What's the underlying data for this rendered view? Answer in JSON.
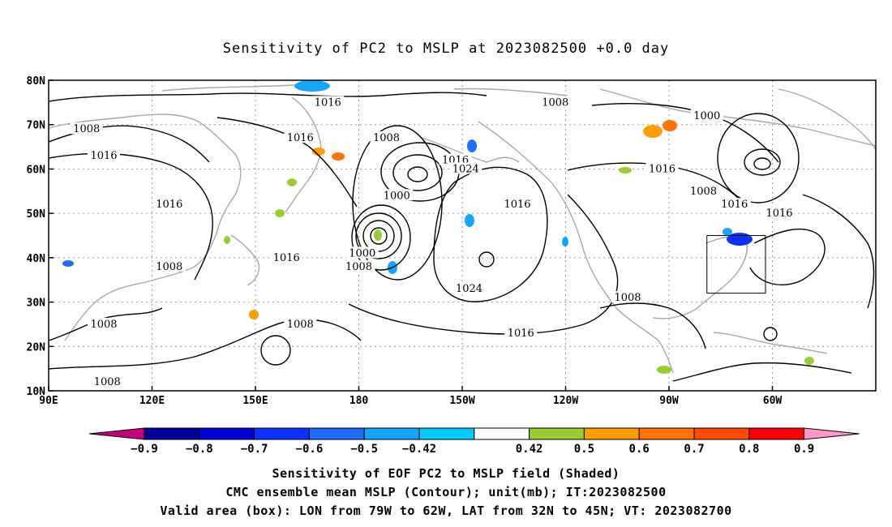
{
  "title": "Sensitivity of PC2 to MSLP at 2023082500 +0.0 day",
  "map": {
    "lon_ticks": [
      "90E",
      "120E",
      "150E",
      "180",
      "150W",
      "120W",
      "90W",
      "60W"
    ],
    "lat_ticks": [
      "80N",
      "70N",
      "60N",
      "50N",
      "40N",
      "30N",
      "20N",
      "10N"
    ],
    "contour_labels": [
      {
        "text": "1016",
        "lon": 171,
        "lat": 75
      },
      {
        "text": "1008",
        "lon": 101,
        "lat": 69
      },
      {
        "text": "1016",
        "lon": 106,
        "lat": 63
      },
      {
        "text": "1016",
        "lon": 163,
        "lat": 67
      },
      {
        "text": "1008",
        "lon": 188,
        "lat": 67
      },
      {
        "text": "1016",
        "lon": 208,
        "lat": 62
      },
      {
        "text": "1024",
        "lon": 211,
        "lat": 60
      },
      {
        "text": "1000",
        "lon": 191,
        "lat": 54
      },
      {
        "text": "1016",
        "lon": 125,
        "lat": 52
      },
      {
        "text": "1016",
        "lon": 159,
        "lat": 40
      },
      {
        "text": "1000",
        "lon": 181,
        "lat": 41
      },
      {
        "text": "1008",
        "lon": 180,
        "lat": 38
      },
      {
        "text": "1008",
        "lon": 125,
        "lat": 38
      },
      {
        "text": "1024",
        "lon": 212,
        "lat": 33
      },
      {
        "text": "1016",
        "lon": 226,
        "lat": 52
      },
      {
        "text": "1008",
        "lon": 237,
        "lat": 75
      },
      {
        "text": "1000",
        "lon": 281,
        "lat": 72
      },
      {
        "text": "1016",
        "lon": 268,
        "lat": 60
      },
      {
        "text": "1008",
        "lon": 280,
        "lat": 55
      },
      {
        "text": "1016",
        "lon": 289,
        "lat": 52
      },
      {
        "text": "1016",
        "lon": 302,
        "lat": 50
      },
      {
        "text": "1008",
        "lon": 258,
        "lat": 31
      },
      {
        "text": "1016",
        "lon": 227,
        "lat": 23
      },
      {
        "text": "1008",
        "lon": 163,
        "lat": 25
      },
      {
        "text": "1008",
        "lon": 106,
        "lat": 25
      },
      {
        "text": "1008",
        "lon": 107,
        "lat": 12
      }
    ],
    "valid_box": {
      "lon_min": 281,
      "lon_max": 298,
      "lat_min": 32,
      "lat_max": 45
    }
  },
  "colorbar": {
    "labels": [
      "−0.9",
      "−0.8",
      "−0.7",
      "−0.6",
      "−0.5",
      "−0.42",
      "0.42",
      "0.5",
      "0.6",
      "0.7",
      "0.8",
      "0.9"
    ],
    "colors": [
      "#00009c",
      "#0000d8",
      "#0a32ff",
      "#1f6dff",
      "#14a5ff",
      "#00caff",
      "#ffffff",
      "#9acd32",
      "#ff9d00",
      "#ff7400",
      "#ff4800",
      "#ff0000"
    ],
    "low_end_color": "#c8007c",
    "high_end_color": "#ff9ac8"
  },
  "caption": {
    "line1": "Sensitivity of EOF PC2 to MSLP field (Shaded)",
    "line2": "CMC ensemble mean MSLP (Contour); unit(mb); IT:2023082500",
    "line3": "Valid area (box): LON from 79W to 62W, LAT from 32N to 45N; VT: 2023082700"
  }
}
